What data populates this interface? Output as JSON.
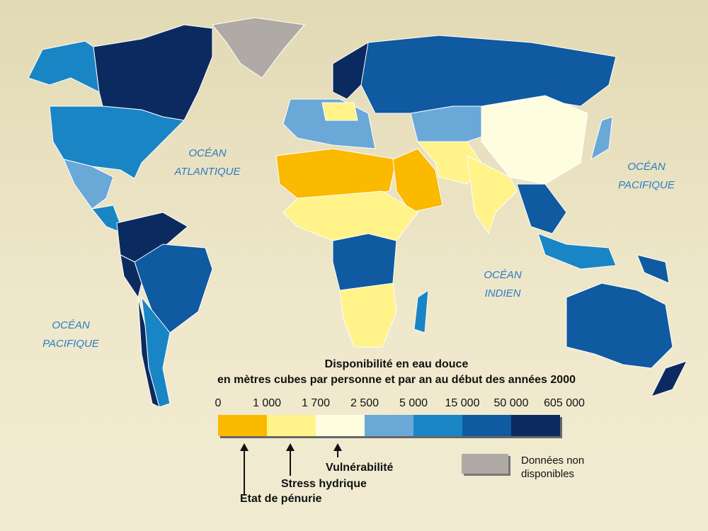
{
  "oceans": {
    "atlantique": [
      "OCÉAN",
      "ATLANTIQUE"
    ],
    "pacifique_est": [
      "OCÉAN",
      "PACIFIQUE"
    ],
    "indien": [
      "OCÉAN",
      "INDIEN"
    ],
    "pacifique_ouest": [
      "OCÉAN",
      "PACIFIQUE"
    ]
  },
  "legend": {
    "title": "Disponibilité en eau douce",
    "subtitle": "en mètres cubes par personne et par an au début des années 2000",
    "thresholds": [
      "0",
      "1 000",
      "1 700",
      "2 500",
      "5 000",
      "15 000",
      "50 000",
      "605 000"
    ],
    "colors": [
      "#fbb900",
      "#fff38a",
      "#fffde0",
      "#6aa8d8",
      "#1a85c5",
      "#0f5aa0",
      "#0b2a5f"
    ],
    "categories": {
      "penurie": "Etat de pénurie",
      "stress": "Stress hydrique",
      "vulnerabilite": "Vulnérabilité"
    },
    "no_data_label": "Données non disponibles",
    "no_data_color": "#b0aaa6"
  }
}
